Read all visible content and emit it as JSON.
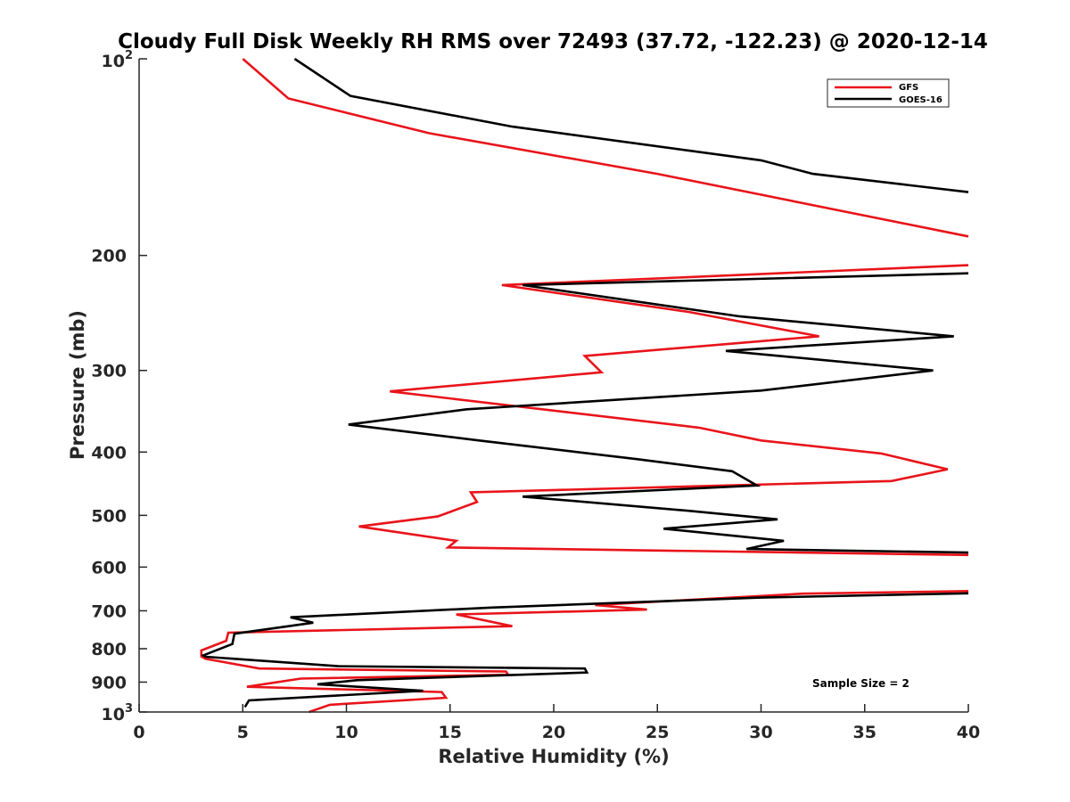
{
  "chart_data": {
    "type": "line",
    "title": "Cloudy Full Disk Weekly RH RMS over 72493 (37.72, -122.23) @ 2020-12-14",
    "xlabel": "Relative Humidity (%)",
    "ylabel": "Pressure (mb)",
    "xlim": [
      0,
      40
    ],
    "ylim": [
      100,
      1000
    ],
    "yscale": "log",
    "y_reversed": true,
    "grid": false,
    "legend_position": "top-right",
    "x_ticks": [
      0,
      5,
      10,
      15,
      20,
      25,
      30,
      35,
      40
    ],
    "y_ticks": [
      {
        "value": 100,
        "base": "10",
        "exp": "2"
      },
      {
        "value": 200,
        "label": "200"
      },
      {
        "value": 300,
        "label": "300"
      },
      {
        "value": 400,
        "label": "400"
      },
      {
        "value": 500,
        "label": "500"
      },
      {
        "value": 600,
        "label": "600"
      },
      {
        "value": 700,
        "label": "700"
      },
      {
        "value": 800,
        "label": "800"
      },
      {
        "value": 900,
        "label": "900"
      },
      {
        "value": 1000,
        "base": "10",
        "exp": "3"
      }
    ],
    "annotation": "Sample Size = 2",
    "series": [
      {
        "name": "GFS",
        "color": "#e8141a",
        "points": [
          [
            5.0,
            100
          ],
          [
            7.2,
            115
          ],
          [
            14.0,
            130
          ],
          [
            25.0,
            150
          ],
          [
            40.0,
            187
          ],
          [
            null,
            null
          ],
          [
            40.0,
            207
          ],
          [
            17.5,
            222
          ],
          [
            26.5,
            244
          ],
          [
            32.8,
            266
          ],
          [
            21.5,
            285
          ],
          [
            22.3,
            302
          ],
          [
            12.1,
            323
          ],
          [
            27.0,
            367
          ],
          [
            30.0,
            384
          ],
          [
            35.8,
            402
          ],
          [
            39.0,
            425
          ],
          [
            36.3,
            443
          ],
          [
            16.0,
            461
          ],
          [
            16.3,
            477
          ],
          [
            14.4,
            502
          ],
          [
            10.6,
            520
          ],
          [
            15.3,
            547
          ],
          [
            14.9,
            560
          ],
          [
            40.0,
            575
          ],
          [
            null,
            null
          ],
          [
            40.0,
            653
          ],
          [
            32.0,
            659
          ],
          [
            22.0,
            686
          ],
          [
            24.5,
            697
          ],
          [
            15.3,
            709
          ],
          [
            18.0,
            739
          ],
          [
            4.3,
            756
          ],
          [
            4.2,
            778
          ],
          [
            3.0,
            805
          ],
          [
            3.0,
            822
          ],
          [
            3.2,
            829
          ],
          [
            5.8,
            858
          ],
          [
            17.7,
            867
          ],
          [
            17.8,
            877
          ],
          [
            7.8,
            889
          ],
          [
            5.2,
            915
          ],
          [
            14.6,
            932
          ],
          [
            14.8,
            951
          ],
          [
            9.2,
            975
          ],
          [
            8.2,
            1000
          ]
        ]
      },
      {
        "name": "GOES-16",
        "color": "#000000",
        "points": [
          [
            7.5,
            100
          ],
          [
            10.2,
            114
          ],
          [
            18.0,
            127
          ],
          [
            30.0,
            143
          ],
          [
            32.5,
            150
          ],
          [
            40.0,
            160
          ],
          [
            null,
            null
          ],
          [
            40.0,
            213
          ],
          [
            18.5,
            222
          ],
          [
            29.0,
            248
          ],
          [
            39.3,
            266
          ],
          [
            28.3,
            280
          ],
          [
            38.3,
            300
          ],
          [
            30.0,
            322
          ],
          [
            15.8,
            344
          ],
          [
            10.1,
            363
          ],
          [
            16.4,
            384
          ],
          [
            24.0,
            410
          ],
          [
            28.6,
            428
          ],
          [
            29.8,
            450
          ],
          [
            18.5,
            468
          ],
          [
            26.5,
            492
          ],
          [
            30.8,
            507
          ],
          [
            25.3,
            524
          ],
          [
            31.1,
            547
          ],
          [
            29.3,
            563
          ],
          [
            40.0,
            570
          ],
          [
            null,
            null
          ],
          [
            40.0,
            658
          ],
          [
            30.0,
            668
          ],
          [
            17.0,
            692
          ],
          [
            7.3,
            716
          ],
          [
            8.4,
            730
          ],
          [
            4.6,
            759
          ],
          [
            4.5,
            787
          ],
          [
            3.1,
            819
          ],
          [
            3.2,
            823
          ],
          [
            9.6,
            851
          ],
          [
            21.5,
            858
          ],
          [
            21.6,
            870
          ],
          [
            10.5,
            894
          ],
          [
            8.6,
            907
          ],
          [
            13.7,
            928
          ],
          [
            5.3,
            960
          ],
          [
            5.1,
            983
          ]
        ]
      }
    ]
  }
}
